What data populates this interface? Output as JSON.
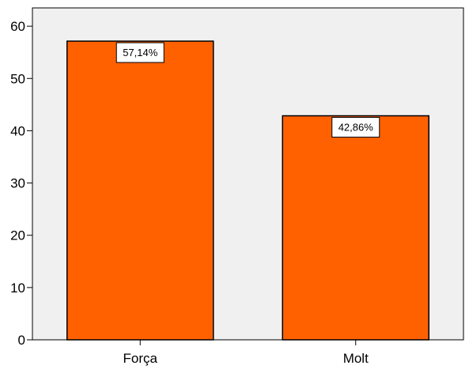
{
  "chart_data": {
    "type": "bar",
    "categories": [
      "Força",
      "Molt"
    ],
    "values": [
      57.14,
      42.86
    ],
    "data_labels": [
      "57,14%",
      "42,86%"
    ],
    "title": "",
    "xlabel": "",
    "ylabel": "",
    "ylim": [
      0,
      60
    ],
    "yticks": [
      0,
      10,
      20,
      30,
      40,
      50,
      60
    ],
    "ytick_labels": [
      "0",
      "10",
      "20",
      "30",
      "40",
      "50",
      "60"
    ],
    "grid": false,
    "legend": "none",
    "colors": {
      "bar_fill": "#ff6100",
      "bar_stroke": "#000000",
      "plot_background": "#f0f0f0",
      "label_box_fill": "#ffffff"
    }
  }
}
